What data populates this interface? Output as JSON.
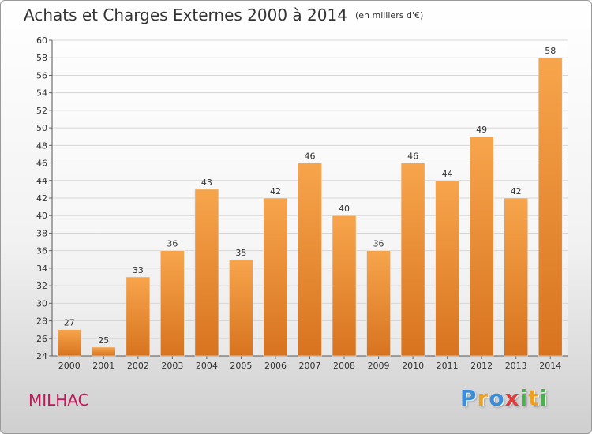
{
  "header": {
    "title": "Achats et Charges Externes 2000 à 2014",
    "subtitle": "(en milliers d'€)"
  },
  "footer": {
    "commune": "MILHAC",
    "logo_letters": [
      {
        "ch": "P",
        "color": "#3a8ddb"
      },
      {
        "ch": "r",
        "color": "#f0a020"
      },
      {
        "ch": "o",
        "color": "#3a8ddb"
      },
      {
        "ch": "x",
        "color": "#e23a3a"
      },
      {
        "ch": "i",
        "color": "#4caf50"
      },
      {
        "ch": "t",
        "color": "#f0a020"
      },
      {
        "ch": "i",
        "color": "#4caf50"
      }
    ]
  },
  "chart_data": {
    "type": "bar",
    "categories": [
      "2000",
      "2001",
      "2002",
      "2003",
      "2004",
      "2005",
      "2006",
      "2007",
      "2008",
      "2009",
      "2010",
      "2011",
      "2012",
      "2013",
      "2014"
    ],
    "values": [
      27,
      25,
      33,
      36,
      43,
      35,
      42,
      46,
      40,
      36,
      46,
      44,
      49,
      42,
      58
    ],
    "ylim": [
      24,
      60
    ],
    "yticks": [
      24,
      26,
      28,
      30,
      32,
      34,
      36,
      38,
      40,
      42,
      44,
      46,
      48,
      50,
      52,
      54,
      56,
      58,
      60
    ],
    "grid": true,
    "bar_color_top": "#f7a54c",
    "bar_color_bottom": "#d8731f",
    "grid_color": "#d6d6d6",
    "title": "Achats et Charges Externes 2000 à 2014",
    "subtitle": "(en milliers d'€)"
  }
}
